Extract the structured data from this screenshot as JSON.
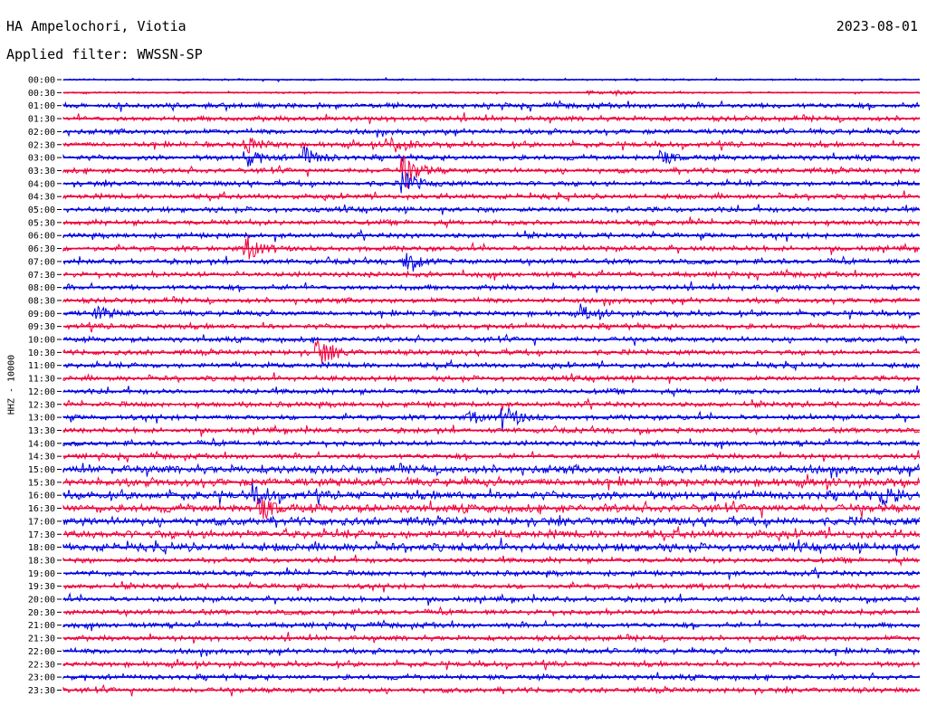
{
  "header": {
    "station": "HA Ampelochori, Viotia",
    "date": "2023-08-01",
    "filter": "Applied filter: WWSSN-SP"
  },
  "chart_data": {
    "type": "line",
    "description_kind": "helicorder",
    "ylabel": "HHZ - 10000",
    "rows": [
      "00:00",
      "00:30",
      "01:00",
      "01:30",
      "02:00",
      "02:30",
      "03:00",
      "03:30",
      "04:00",
      "04:30",
      "05:00",
      "05:30",
      "06:00",
      "06:30",
      "07:00",
      "07:30",
      "08:00",
      "08:30",
      "09:00",
      "09:30",
      "10:00",
      "10:30",
      "11:00",
      "11:30",
      "12:00",
      "12:30",
      "13:00",
      "13:30",
      "14:00",
      "14:30",
      "15:00",
      "15:30",
      "16:00",
      "16:30",
      "17:00",
      "17:30",
      "18:00",
      "18:30",
      "19:00",
      "19:30",
      "20:00",
      "20:30",
      "21:00",
      "21:30",
      "22:00",
      "22:30",
      "23:00",
      "23:30"
    ],
    "row_minutes": 30,
    "trace_colors": [
      "#0000e0",
      "#f0003c"
    ],
    "events": [
      {
        "row": 1,
        "minute": 18.5,
        "amp": 0.3
      },
      {
        "row": 1,
        "minute": 19.5,
        "amp": 0.35
      },
      {
        "row": 5,
        "minute": 6.5,
        "amp": 1.2
      },
      {
        "row": 5,
        "minute": 11.5,
        "amp": 1.3
      },
      {
        "row": 6,
        "minute": 8.5,
        "amp": 1.6
      },
      {
        "row": 6,
        "minute": 6.5,
        "amp": 1.2
      },
      {
        "row": 6,
        "minute": 21.0,
        "amp": 1.0
      },
      {
        "row": 7,
        "minute": 12.0,
        "amp": 2.4
      },
      {
        "row": 8,
        "minute": 12.0,
        "amp": 1.5
      },
      {
        "row": 13,
        "minute": 6.5,
        "amp": 1.8
      },
      {
        "row": 14,
        "minute": 12.0,
        "amp": 1.6
      },
      {
        "row": 18,
        "minute": 1.3,
        "amp": 0.9
      },
      {
        "row": 18,
        "minute": 18.3,
        "amp": 0.8
      },
      {
        "row": 21,
        "minute": 9.0,
        "amp": 2.0
      },
      {
        "row": 26,
        "minute": 14.3,
        "amp": 0.7
      },
      {
        "row": 26,
        "minute": 15.5,
        "amp": 1.8
      },
      {
        "row": 32,
        "minute": 6.8,
        "amp": 1.2
      },
      {
        "row": 32,
        "minute": 28.8,
        "amp": 1.3
      },
      {
        "row": 33,
        "minute": 7.0,
        "amp": 1.5
      }
    ]
  }
}
